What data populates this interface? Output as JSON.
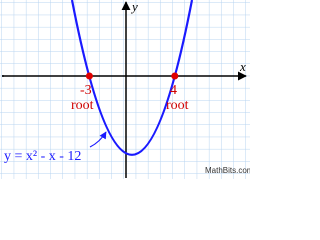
{
  "axes": {
    "x_label": "x",
    "y_label": "y"
  },
  "roots": [
    {
      "value": "-3",
      "label": "root"
    },
    {
      "value": "4",
      "label": "root"
    }
  ],
  "equation": "y = x² - x - 12",
  "credit": "MathBits.com"
}
